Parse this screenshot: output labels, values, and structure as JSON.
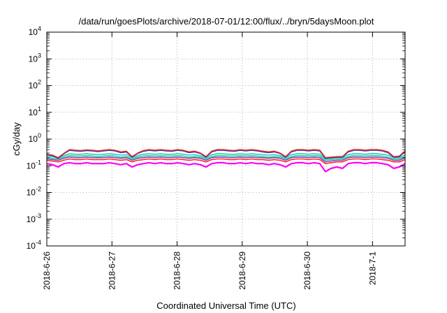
{
  "chart_data": {
    "type": "line",
    "title": "/data/run/goesPlots/archive/2018-07-01/12:00/flux/../bryn/5daysMoon.plot",
    "xlabel": "Coordinated Universal Time (UTC)",
    "ylabel": "cGy/day",
    "yscale": "log",
    "ylim": [
      0.0001,
      10000
    ],
    "xlim": [
      "2018-06-26",
      "2018-07-01T12:00"
    ],
    "x_ticks": [
      "2018-6-26",
      "2018-6-27",
      "2018-6-28",
      "2018-6-29",
      "2018-6-30",
      "2018-7-1"
    ],
    "y_ticks": [
      {
        "base": "10",
        "exp": "-4"
      },
      {
        "base": "10",
        "exp": "-3"
      },
      {
        "base": "10",
        "exp": "-2"
      },
      {
        "base": "10",
        "exp": "-1"
      },
      {
        "base": "10",
        "exp": "0"
      },
      {
        "base": "10",
        "exp": "1"
      },
      {
        "base": "10",
        "exp": "2"
      },
      {
        "base": "10",
        "exp": "3"
      },
      {
        "base": "10",
        "exp": "4"
      }
    ],
    "grid": true,
    "legend": "none",
    "series": [
      {
        "color": "#ff00ff",
        "values": [
          0.12,
          0.11,
          0.09,
          0.12,
          0.13,
          0.12,
          0.12,
          0.13,
          0.12,
          0.12,
          0.12,
          0.13,
          0.12,
          0.11,
          0.12,
          0.09,
          0.11,
          0.12,
          0.13,
          0.12,
          0.13,
          0.12,
          0.12,
          0.13,
          0.12,
          0.11,
          0.12,
          0.11,
          0.09,
          0.12,
          0.13,
          0.13,
          0.12,
          0.12,
          0.13,
          0.12,
          0.13,
          0.12,
          0.12,
          0.11,
          0.12,
          0.11,
          0.09,
          0.12,
          0.13,
          0.13,
          0.12,
          0.13,
          0.12,
          0.06,
          0.08,
          0.09,
          0.08,
          0.12,
          0.13,
          0.13,
          0.12,
          0.13,
          0.13,
          0.12,
          0.11,
          0.08,
          0.09,
          0.12
        ]
      },
      {
        "color": "#ff2a2a",
        "values": [
          0.16,
          0.15,
          0.14,
          0.16,
          0.18,
          0.17,
          0.17,
          0.18,
          0.17,
          0.17,
          0.17,
          0.18,
          0.17,
          0.16,
          0.17,
          0.14,
          0.16,
          0.17,
          0.18,
          0.17,
          0.18,
          0.17,
          0.17,
          0.18,
          0.17,
          0.16,
          0.17,
          0.16,
          0.14,
          0.17,
          0.18,
          0.18,
          0.17,
          0.17,
          0.18,
          0.17,
          0.18,
          0.17,
          0.17,
          0.16,
          0.17,
          0.16,
          0.14,
          0.17,
          0.18,
          0.18,
          0.17,
          0.18,
          0.17,
          0.12,
          0.13,
          0.14,
          0.14,
          0.17,
          0.18,
          0.18,
          0.17,
          0.18,
          0.18,
          0.17,
          0.16,
          0.14,
          0.14,
          0.17
        ]
      },
      {
        "color": "#8844cc",
        "values": [
          0.18,
          0.17,
          0.16,
          0.19,
          0.21,
          0.2,
          0.2,
          0.21,
          0.2,
          0.2,
          0.2,
          0.21,
          0.2,
          0.19,
          0.2,
          0.16,
          0.19,
          0.2,
          0.21,
          0.2,
          0.21,
          0.2,
          0.2,
          0.21,
          0.2,
          0.19,
          0.2,
          0.19,
          0.16,
          0.2,
          0.21,
          0.21,
          0.2,
          0.2,
          0.21,
          0.2,
          0.21,
          0.2,
          0.2,
          0.19,
          0.2,
          0.19,
          0.16,
          0.2,
          0.21,
          0.21,
          0.2,
          0.21,
          0.2,
          0.14,
          0.15,
          0.16,
          0.16,
          0.2,
          0.21,
          0.21,
          0.2,
          0.21,
          0.21,
          0.2,
          0.19,
          0.16,
          0.16,
          0.2
        ]
      },
      {
        "color": "#2fd38a",
        "values": [
          0.2,
          0.19,
          0.18,
          0.21,
          0.24,
          0.23,
          0.23,
          0.24,
          0.23,
          0.22,
          0.23,
          0.24,
          0.23,
          0.21,
          0.22,
          0.18,
          0.21,
          0.23,
          0.24,
          0.23,
          0.24,
          0.23,
          0.23,
          0.24,
          0.23,
          0.21,
          0.22,
          0.21,
          0.18,
          0.22,
          0.24,
          0.24,
          0.23,
          0.23,
          0.24,
          0.23,
          0.24,
          0.23,
          0.22,
          0.21,
          0.22,
          0.21,
          0.18,
          0.22,
          0.24,
          0.24,
          0.23,
          0.24,
          0.23,
          0.16,
          0.17,
          0.18,
          0.18,
          0.22,
          0.24,
          0.24,
          0.23,
          0.24,
          0.24,
          0.23,
          0.21,
          0.18,
          0.18,
          0.22
        ]
      },
      {
        "color": "#22cccc",
        "values": [
          0.23,
          0.22,
          0.2,
          0.24,
          0.28,
          0.27,
          0.27,
          0.28,
          0.27,
          0.26,
          0.27,
          0.28,
          0.27,
          0.25,
          0.26,
          0.2,
          0.24,
          0.27,
          0.28,
          0.27,
          0.28,
          0.27,
          0.27,
          0.28,
          0.27,
          0.25,
          0.26,
          0.24,
          0.2,
          0.26,
          0.28,
          0.28,
          0.27,
          0.27,
          0.28,
          0.27,
          0.28,
          0.27,
          0.26,
          0.25,
          0.26,
          0.24,
          0.2,
          0.26,
          0.28,
          0.28,
          0.27,
          0.28,
          0.27,
          0.18,
          0.19,
          0.2,
          0.2,
          0.26,
          0.28,
          0.28,
          0.27,
          0.28,
          0.28,
          0.27,
          0.25,
          0.2,
          0.2,
          0.26
        ]
      },
      {
        "color": "#2233cc",
        "values": [
          0.26,
          0.24,
          0.19,
          0.28,
          0.38,
          0.36,
          0.35,
          0.37,
          0.36,
          0.34,
          0.36,
          0.38,
          0.36,
          0.31,
          0.33,
          0.21,
          0.29,
          0.35,
          0.38,
          0.36,
          0.38,
          0.36,
          0.35,
          0.38,
          0.36,
          0.31,
          0.33,
          0.29,
          0.21,
          0.33,
          0.38,
          0.38,
          0.36,
          0.35,
          0.38,
          0.36,
          0.38,
          0.36,
          0.33,
          0.31,
          0.33,
          0.29,
          0.21,
          0.33,
          0.38,
          0.38,
          0.36,
          0.38,
          0.36,
          0.19,
          0.2,
          0.21,
          0.21,
          0.33,
          0.38,
          0.38,
          0.36,
          0.38,
          0.38,
          0.36,
          0.31,
          0.21,
          0.22,
          0.34
        ]
      },
      {
        "color": "#e8261e",
        "values": [
          0.27,
          0.25,
          0.2,
          0.29,
          0.4,
          0.38,
          0.37,
          0.39,
          0.38,
          0.36,
          0.38,
          0.4,
          0.38,
          0.33,
          0.35,
          0.22,
          0.3,
          0.37,
          0.4,
          0.38,
          0.4,
          0.38,
          0.37,
          0.4,
          0.38,
          0.33,
          0.35,
          0.3,
          0.22,
          0.35,
          0.4,
          0.4,
          0.38,
          0.37,
          0.4,
          0.38,
          0.4,
          0.38,
          0.35,
          0.33,
          0.35,
          0.3,
          0.22,
          0.35,
          0.4,
          0.4,
          0.38,
          0.4,
          0.38,
          0.2,
          0.21,
          0.22,
          0.22,
          0.35,
          0.4,
          0.4,
          0.38,
          0.4,
          0.4,
          0.38,
          0.33,
          0.22,
          0.23,
          0.36
        ]
      }
    ]
  }
}
